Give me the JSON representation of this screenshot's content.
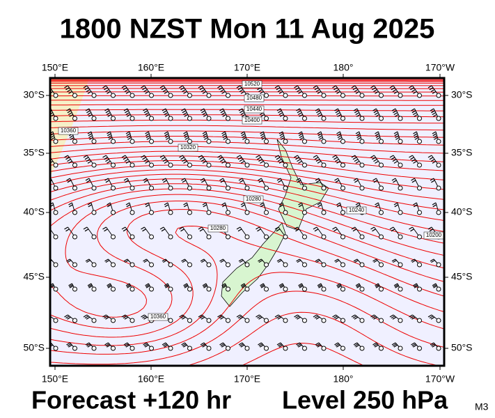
{
  "title": "1800 NZST Mon 11 Aug 2025",
  "footer": {
    "forecast": "Forecast +120 hr",
    "level": "Level 250 hPa",
    "code": "M3"
  },
  "axes": {
    "longitudes": [
      "150°E",
      "160°E",
      "170°E",
      "180°",
      "170°W"
    ],
    "latitudes": [
      "30°S",
      "35°S",
      "40°S",
      "45°S",
      "50°S"
    ]
  },
  "contour_labels": [
    "10520",
    "10480",
    "10440",
    "10400",
    "10360",
    "10320",
    "10280",
    "10280",
    "10360",
    "10240",
    "10200"
  ]
}
